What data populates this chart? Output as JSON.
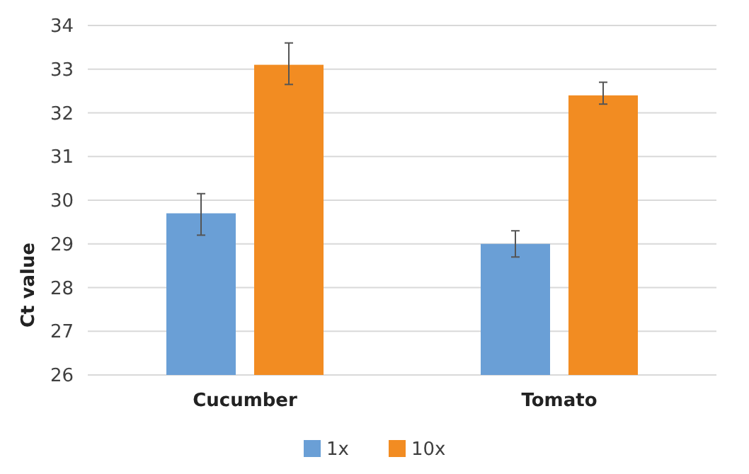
{
  "chart_data": {
    "type": "bar",
    "ylabel": "Ct value",
    "categories": [
      "Cucumber",
      "Tomato"
    ],
    "series": [
      {
        "name": "1x",
        "color": "#6a9fd6",
        "values": [
          29.7,
          29.0
        ],
        "errors": [
          [
            29.2,
            30.15
          ],
          [
            28.7,
            29.3
          ]
        ]
      },
      {
        "name": "10x",
        "color": "#f28c22",
        "values": [
          33.1,
          32.4
        ],
        "errors": [
          [
            32.65,
            33.6
          ],
          [
            32.2,
            32.7
          ]
        ]
      }
    ],
    "ylim": [
      26,
      34
    ],
    "yticks": [
      26,
      27,
      28,
      29,
      30,
      31,
      32,
      33,
      34
    ],
    "grid": "y",
    "legend": "bottom"
  }
}
